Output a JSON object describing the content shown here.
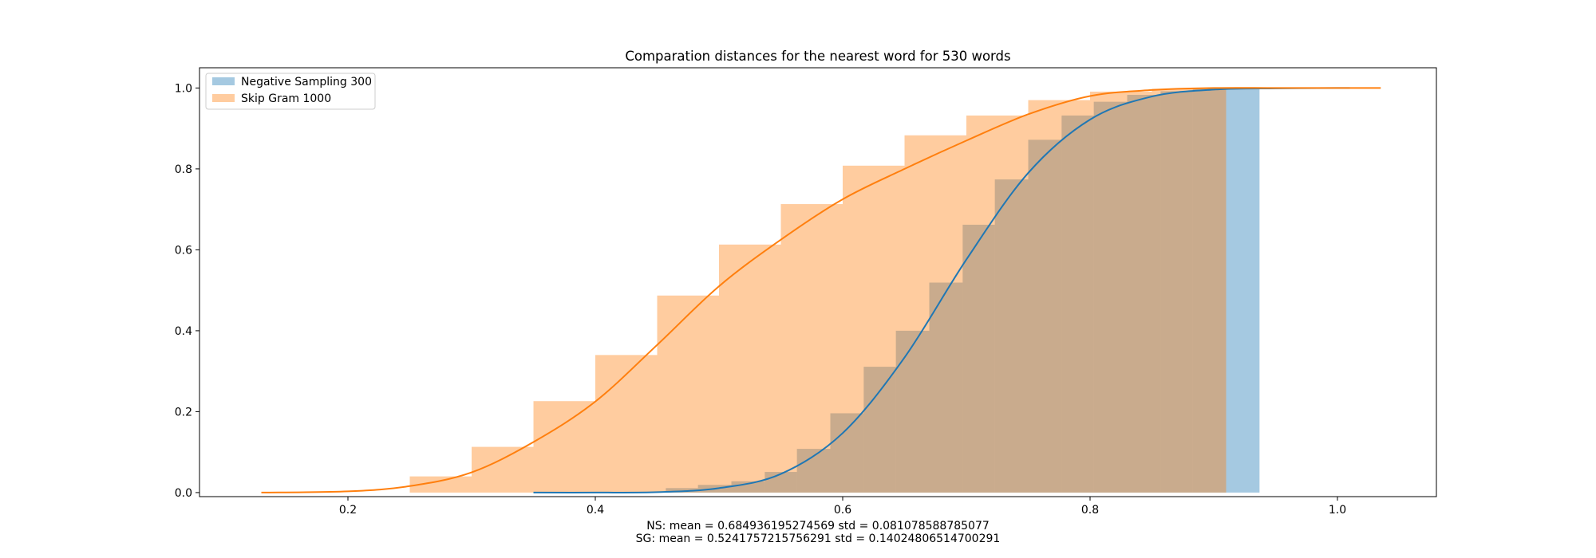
{
  "chart_data": {
    "type": "histogram-cdf",
    "title": "Comparation distances for the nearest word for 530 words",
    "xlabel": "",
    "ylabel": "",
    "xlim": [
      0.08,
      1.08
    ],
    "ylim": [
      -0.01,
      1.05
    ],
    "xticks": [
      0.2,
      0.4,
      0.6,
      0.8,
      1.0
    ],
    "xtick_labels": [
      "0.2",
      "0.4",
      "0.6",
      "0.8",
      "1.0"
    ],
    "yticks": [
      0.0,
      0.2,
      0.4,
      0.6,
      0.8,
      1.0
    ],
    "ytick_labels": [
      "0.0",
      "0.2",
      "0.4",
      "0.6",
      "0.8",
      "1.0"
    ],
    "legend_position": "upper-left",
    "annotations": [
      "NS: mean = 0.684936195274569 std = 0.081078588785077",
      "SG: mean = 0.5241757215756291 std = 0.14024806514700291"
    ],
    "series": [
      {
        "name": "Negative Sampling 300",
        "kind": "cumulative-histogram",
        "color": "#1f77b4",
        "opacity": 0.4,
        "bins": [
          {
            "left": 0.35,
            "right": 0.376,
            "value": 0.002
          },
          {
            "left": 0.376,
            "right": 0.403,
            "value": 0.002
          },
          {
            "left": 0.403,
            "right": 0.43,
            "value": 0.002
          },
          {
            "left": 0.43,
            "right": 0.457,
            "value": 0.002
          },
          {
            "left": 0.457,
            "right": 0.483,
            "value": 0.011
          },
          {
            "left": 0.483,
            "right": 0.51,
            "value": 0.019
          },
          {
            "left": 0.51,
            "right": 0.537,
            "value": 0.028
          },
          {
            "left": 0.537,
            "right": 0.563,
            "value": 0.051
          },
          {
            "left": 0.563,
            "right": 0.59,
            "value": 0.108
          },
          {
            "left": 0.59,
            "right": 0.617,
            "value": 0.196
          },
          {
            "left": 0.617,
            "right": 0.643,
            "value": 0.311
          },
          {
            "left": 0.643,
            "right": 0.67,
            "value": 0.4
          },
          {
            "left": 0.67,
            "right": 0.697,
            "value": 0.519
          },
          {
            "left": 0.697,
            "right": 0.723,
            "value": 0.662
          },
          {
            "left": 0.723,
            "right": 0.75,
            "value": 0.774
          },
          {
            "left": 0.75,
            "right": 0.777,
            "value": 0.872
          },
          {
            "left": 0.777,
            "right": 0.803,
            "value": 0.932
          },
          {
            "left": 0.803,
            "right": 0.83,
            "value": 0.966
          },
          {
            "left": 0.83,
            "right": 0.857,
            "value": 0.983
          },
          {
            "left": 0.857,
            "right": 0.883,
            "value": 0.992
          },
          {
            "left": 0.883,
            "right": 0.91,
            "value": 0.998
          },
          {
            "left": 0.91,
            "right": 0.937,
            "value": 1.0
          }
        ],
        "curve": [
          [
            0.35,
            0.0
          ],
          [
            0.4,
            0.0
          ],
          [
            0.45,
            0.001
          ],
          [
            0.5,
            0.011
          ],
          [
            0.55,
            0.046
          ],
          [
            0.6,
            0.147
          ],
          [
            0.65,
            0.334
          ],
          [
            0.7,
            0.576
          ],
          [
            0.75,
            0.79
          ],
          [
            0.8,
            0.922
          ],
          [
            0.85,
            0.979
          ],
          [
            0.9,
            0.996
          ],
          [
            0.95,
            0.999
          ],
          [
            1.0,
            1.0
          ],
          [
            1.01,
            1.0
          ]
        ]
      },
      {
        "name": "Skip Gram 1000",
        "kind": "cumulative-histogram",
        "color": "#ff7f0e",
        "opacity": 0.4,
        "bins": [
          {
            "left": 0.25,
            "right": 0.3,
            "value": 0.04
          },
          {
            "left": 0.3,
            "right": 0.35,
            "value": 0.113
          },
          {
            "left": 0.35,
            "right": 0.4,
            "value": 0.226
          },
          {
            "left": 0.4,
            "right": 0.45,
            "value": 0.34
          },
          {
            "left": 0.45,
            "right": 0.5,
            "value": 0.487
          },
          {
            "left": 0.5,
            "right": 0.55,
            "value": 0.613
          },
          {
            "left": 0.55,
            "right": 0.6,
            "value": 0.713
          },
          {
            "left": 0.6,
            "right": 0.65,
            "value": 0.808
          },
          {
            "left": 0.65,
            "right": 0.7,
            "value": 0.883
          },
          {
            "left": 0.7,
            "right": 0.75,
            "value": 0.932
          },
          {
            "left": 0.75,
            "right": 0.8,
            "value": 0.97
          },
          {
            "left": 0.8,
            "right": 0.85,
            "value": 0.991
          },
          {
            "left": 0.85,
            "right": 0.9,
            "value": 0.998
          },
          {
            "left": 0.9,
            "right": 0.91,
            "value": 1.0
          }
        ],
        "curve": [
          [
            0.13,
            0.0
          ],
          [
            0.2,
            0.003
          ],
          [
            0.25,
            0.016
          ],
          [
            0.3,
            0.05
          ],
          [
            0.35,
            0.125
          ],
          [
            0.4,
            0.225
          ],
          [
            0.45,
            0.365
          ],
          [
            0.5,
            0.51
          ],
          [
            0.55,
            0.625
          ],
          [
            0.6,
            0.725
          ],
          [
            0.65,
            0.8
          ],
          [
            0.7,
            0.87
          ],
          [
            0.75,
            0.935
          ],
          [
            0.8,
            0.98
          ],
          [
            0.85,
            0.995
          ],
          [
            0.9,
            1.0
          ],
          [
            0.95,
            1.0
          ],
          [
            1.0,
            1.0
          ],
          [
            1.035,
            1.0
          ]
        ]
      }
    ]
  }
}
